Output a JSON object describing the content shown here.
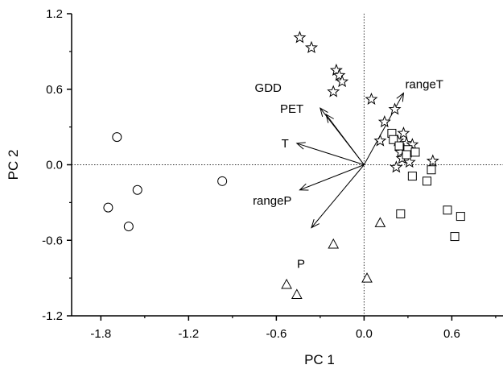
{
  "chart_data": {
    "type": "scatter",
    "xlabel": "PC 1",
    "ylabel": "PC 2",
    "xlim": [
      -2.0,
      0.95
    ],
    "ylim": [
      -1.2,
      1.2
    ],
    "xticks": [
      -1.8,
      -1.2,
      -0.6,
      0.0,
      0.6
    ],
    "xtick_labels": [
      "-1.8",
      "-1.2",
      "-0.6",
      "0.0",
      "0.6"
    ],
    "yticks": [
      -1.2,
      -0.6,
      0.0,
      0.6,
      1.2
    ],
    "ytick_labels": [
      "-1.2",
      "-0.6",
      "0.0",
      "0.6",
      "1.2"
    ],
    "reference_lines": {
      "x": 0,
      "y": 0,
      "style": "dotted"
    },
    "series": [
      {
        "marker": "circle",
        "points": [
          [
            -1.69,
            0.22
          ],
          [
            -1.75,
            -0.34
          ],
          [
            -1.61,
            -0.49
          ],
          [
            -1.55,
            -0.2
          ],
          [
            -0.97,
            -0.13
          ]
        ]
      },
      {
        "marker": "star",
        "points": [
          [
            -0.44,
            1.01
          ],
          [
            -0.36,
            0.93
          ],
          [
            -0.19,
            0.75
          ],
          [
            -0.17,
            0.71
          ],
          [
            -0.15,
            0.66
          ],
          [
            -0.21,
            0.58
          ],
          [
            0.05,
            0.52
          ],
          [
            0.21,
            0.44
          ],
          [
            0.14,
            0.34
          ],
          [
            0.27,
            0.25
          ],
          [
            0.23,
            0.19
          ],
          [
            0.11,
            0.19
          ],
          [
            0.29,
            0.17
          ],
          [
            0.33,
            0.16
          ],
          [
            0.25,
            0.1
          ],
          [
            0.3,
            0.1
          ],
          [
            0.26,
            0.05
          ],
          [
            0.31,
            0.02
          ],
          [
            0.22,
            -0.02
          ],
          [
            0.47,
            0.03
          ]
        ]
      },
      {
        "marker": "square",
        "points": [
          [
            0.19,
            0.25
          ],
          [
            0.2,
            0.2
          ],
          [
            0.24,
            0.15
          ],
          [
            0.3,
            0.12
          ],
          [
            0.35,
            0.1
          ],
          [
            0.29,
            0.08
          ],
          [
            0.33,
            -0.09
          ],
          [
            0.46,
            -0.04
          ],
          [
            0.43,
            -0.13
          ],
          [
            0.25,
            -0.39
          ],
          [
            0.57,
            -0.36
          ],
          [
            0.66,
            -0.41
          ],
          [
            0.62,
            -0.57
          ]
        ]
      },
      {
        "marker": "triangle",
        "points": [
          [
            0.11,
            -0.46
          ],
          [
            -0.21,
            -0.63
          ],
          [
            0.02,
            -0.9
          ],
          [
            -0.53,
            -0.95
          ],
          [
            -0.46,
            -1.03
          ]
        ]
      }
    ],
    "vectors": [
      {
        "label": "rangeT",
        "x": 0.27,
        "y": 0.57
      },
      {
        "label": "GDD",
        "x": -0.3,
        "y": 0.45
      },
      {
        "label": "PET",
        "x": -0.26,
        "y": 0.4
      },
      {
        "label": "T",
        "x": -0.46,
        "y": 0.17
      },
      {
        "label": "rangeP",
        "x": -0.44,
        "y": -0.2
      },
      {
        "label": "P",
        "x": -0.36,
        "y": -0.5
      }
    ]
  }
}
